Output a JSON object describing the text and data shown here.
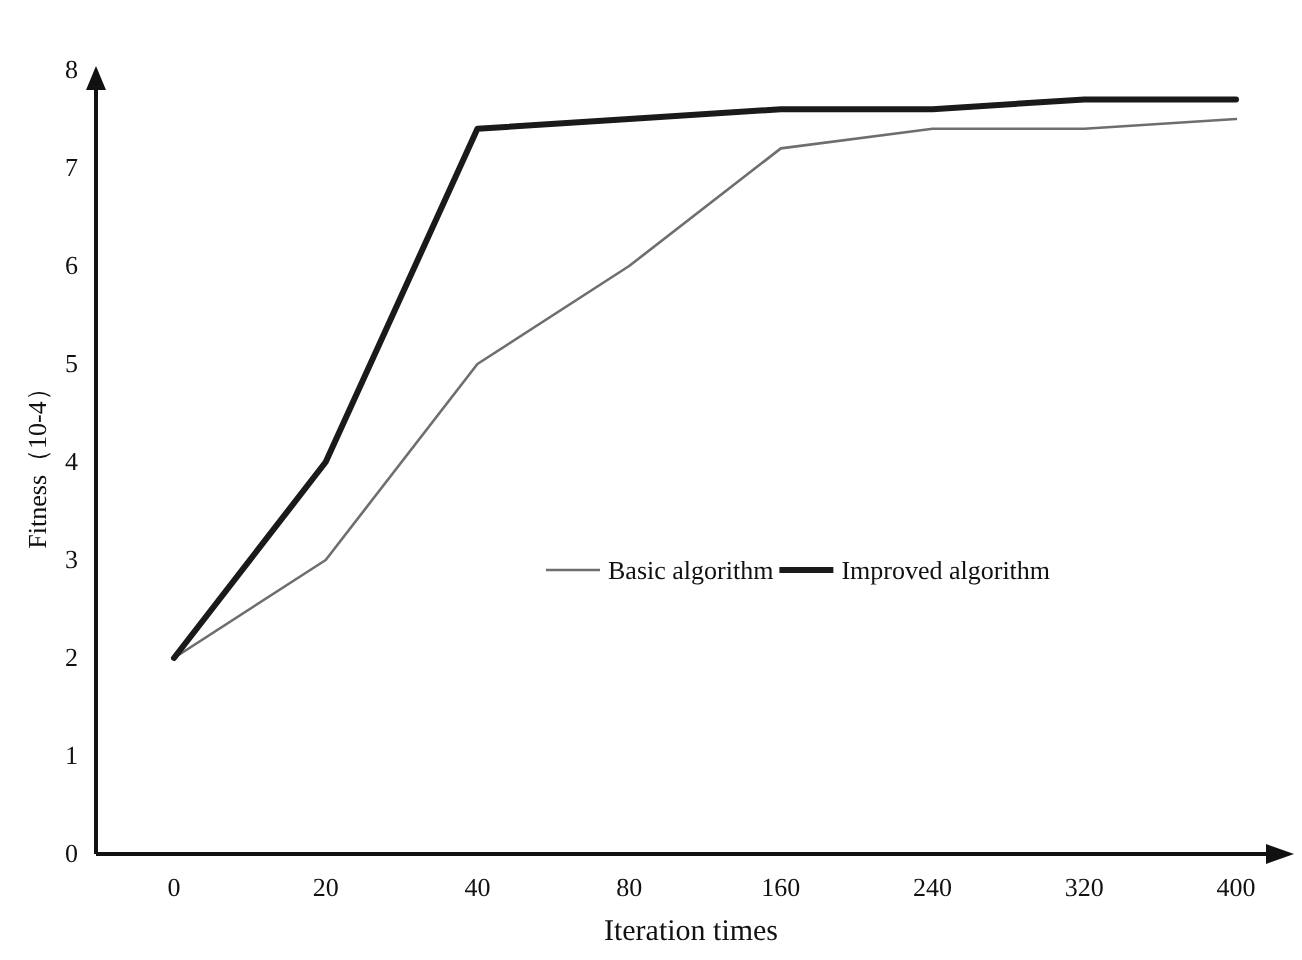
{
  "chart_data": {
    "type": "line",
    "xlabel": "Iteration times",
    "ylabel": "Fitness（10-4）",
    "categories": [
      "0",
      "20",
      "40",
      "80",
      "160",
      "240",
      "320",
      "400"
    ],
    "series": [
      {
        "name": "Basic algorithm",
        "color": "#6e6e6e",
        "values": [
          2,
          3,
          5,
          6,
          7.2,
          7.4,
          7.4,
          7.5
        ]
      },
      {
        "name": "Improved algorithm",
        "color": "#1a1a1a",
        "values": [
          2,
          4,
          7.4,
          7.5,
          7.6,
          7.6,
          7.7,
          7.7
        ]
      }
    ],
    "ylim": [
      0,
      8
    ],
    "yticks": [
      0,
      1,
      2,
      3,
      4,
      5,
      6,
      7,
      8
    ],
    "grid": false,
    "legend": "right",
    "marker": "none",
    "line_style": "solid"
  }
}
